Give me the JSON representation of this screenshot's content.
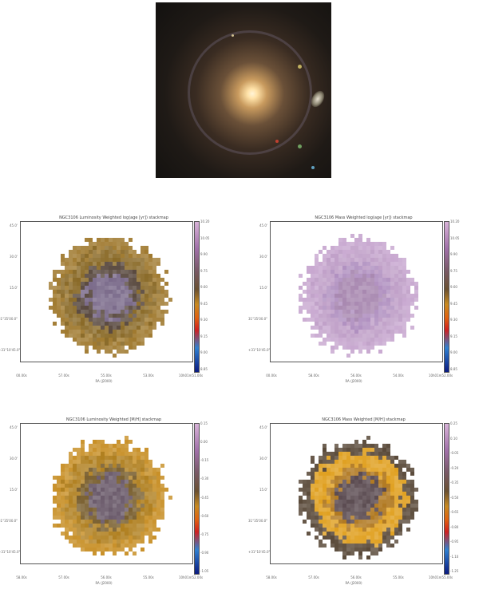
{
  "galaxy_image": {
    "name": "NGC3106 color image"
  },
  "panels": [
    {
      "title": "NGC3106 Luminosity Weighted log(age [yr]) stackmap",
      "xlabel": "RA (J2000)",
      "xticks": [
        "00.00s",
        "57.00s",
        "55.00s",
        "53.00s",
        "10h01m51.00s"
      ],
      "yticks": [
        "45.0'",
        "30.0'",
        "15.0'",
        "31°35'00.0\"",
        "+31°10'45.0\""
      ],
      "cticks": [
        "10.20",
        "10.05",
        "9.90",
        "9.75",
        "9.60",
        "9.45",
        "9.30",
        "9.15",
        "9.00",
        "8.85"
      ],
      "pattern": "lumage"
    },
    {
      "title": "NGC3106 Mass Weighted log(age [yr]) stackmap",
      "xlabel": "RA (J2000)",
      "xticks": [
        "00.00s",
        "58.00s",
        "56.00s",
        "54.00s",
        "10h01m52.00s"
      ],
      "yticks": [
        "45.0'",
        "30.0'",
        "15.0'",
        "31°35'00.0\"",
        "+31°10'45.0\""
      ],
      "cticks": [
        "10.20",
        "10.05",
        "9.90",
        "9.75",
        "9.60",
        "9.45",
        "9.30",
        "9.15",
        "9.00",
        "8.85"
      ],
      "pattern": "massage"
    },
    {
      "title": "NGC3106 Luminosity Weighted [M/H] stackmap",
      "xlabel": "RA (J2000)",
      "xticks": [
        "58.00s",
        "57.00s",
        "56.00s",
        "55.00s",
        "10h01m52.00s"
      ],
      "yticks": [
        "45.0'",
        "30.0'",
        "15.0'",
        "31°35'00.0\"",
        "+31°10'45.0\""
      ],
      "cticks": [
        "0.15",
        "0.00",
        "-0.15",
        "-0.30",
        "-0.45",
        "-0.60",
        "-0.75",
        "-0.90",
        "-1.05"
      ],
      "pattern": "lummh"
    },
    {
      "title": "NGC3106 Mass Weighted [M/H] stackmap",
      "xlabel": "RA (J2000)",
      "xticks": [
        "58.00s",
        "57.00s",
        "56.00s",
        "55.00s",
        "10h01m55.00s"
      ],
      "yticks": [
        "45.0'",
        "30.0'",
        "15.0'",
        "31°35'00.0\"",
        "+31°10'45.0\""
      ],
      "cticks": [
        "0.25",
        "0.10",
        "-0.05",
        "-0.20",
        "-0.35",
        "-0.50",
        "-0.65",
        "-0.80",
        "-0.95",
        "-1.10",
        "-1.25"
      ],
      "pattern": "massmh"
    }
  ]
}
